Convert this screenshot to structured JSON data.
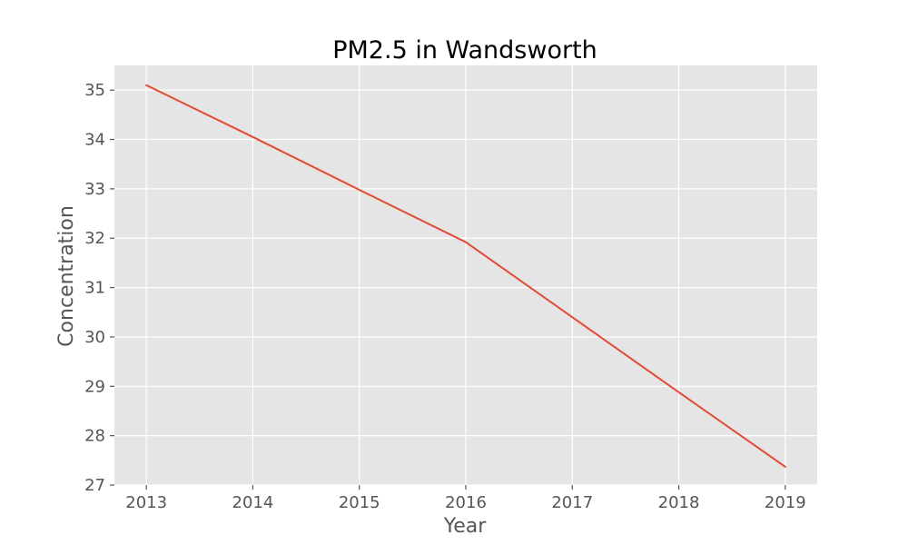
{
  "chart_data": {
    "type": "line",
    "title": "PM2.5 in Wandsworth",
    "xlabel": "Year",
    "ylabel": "Concentration",
    "x": [
      2013,
      2014,
      2015,
      2016,
      2017,
      2018,
      2019
    ],
    "series": [
      {
        "values": [
          35.1,
          34.05,
          32.98,
          31.92,
          30.4,
          28.88,
          27.37
        ],
        "color": "#E24A33"
      }
    ],
    "xlim": [
      2012.7,
      2019.3
    ],
    "ylim": [
      27.0,
      35.5
    ],
    "x_ticks": [
      "2013",
      "2014",
      "2015",
      "2016",
      "2017",
      "2018",
      "2019"
    ],
    "y_ticks": [
      "27",
      "28",
      "29",
      "30",
      "31",
      "32",
      "33",
      "34",
      "35"
    ],
    "grid": true,
    "legend": false,
    "style": {
      "plot_background": "#E5E5E5",
      "grid_color": "#FFFFFF",
      "text_color": "#555555"
    }
  }
}
